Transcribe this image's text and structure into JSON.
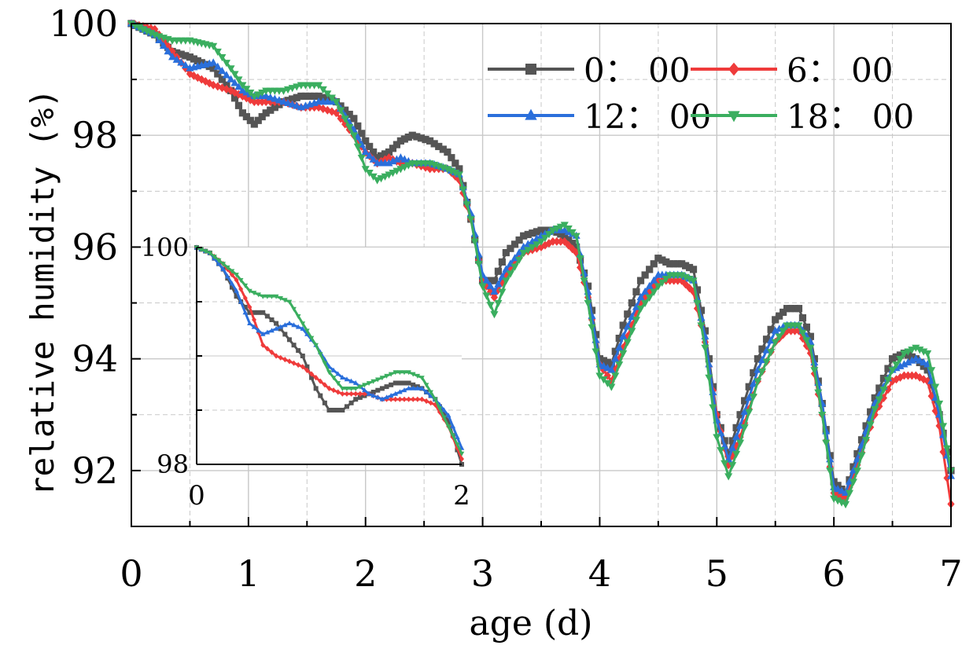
{
  "chart_data": {
    "type": "line",
    "title": "",
    "xlabel": "age (d)",
    "ylabel": "relative humidity (%)",
    "xlim": [
      0,
      7
    ],
    "ylim": [
      91,
      100
    ],
    "xticks": [
      "0",
      "1",
      "2",
      "3",
      "4",
      "5",
      "6",
      "7"
    ],
    "yticks": [
      "92",
      "94",
      "96",
      "98",
      "100"
    ],
    "grid": true,
    "legend_position": "top-right",
    "series": [
      {
        "name": "0: 00",
        "label": "0： 00",
        "color": "#555555",
        "marker": "square",
        "x": [
          0,
          0.2,
          0.35,
          0.5,
          0.7,
          0.85,
          0.95,
          1.05,
          1.15,
          1.3,
          1.45,
          1.6,
          1.75,
          1.9,
          2.0,
          2.1,
          2.2,
          2.3,
          2.4,
          2.55,
          2.7,
          2.8,
          2.9,
          3.0,
          3.1,
          3.2,
          3.35,
          3.5,
          3.6,
          3.7,
          3.8,
          3.9,
          4.0,
          4.1,
          4.2,
          4.35,
          4.5,
          4.6,
          4.7,
          4.8,
          4.9,
          5.0,
          5.1,
          5.2,
          5.35,
          5.5,
          5.6,
          5.7,
          5.8,
          5.9,
          6.0,
          6.1,
          6.2,
          6.35,
          6.5,
          6.6,
          6.7,
          6.8,
          6.9,
          7.0
        ],
        "y": [
          100,
          99.8,
          99.5,
          99.4,
          99.2,
          98.8,
          98.4,
          98.2,
          98.4,
          98.6,
          98.7,
          98.7,
          98.6,
          98.3,
          97.9,
          97.6,
          97.7,
          97.9,
          98.0,
          97.9,
          97.7,
          97.4,
          96.5,
          95.4,
          95.4,
          95.9,
          96.2,
          96.3,
          96.3,
          96.2,
          96.0,
          95.3,
          94.0,
          93.9,
          94.6,
          95.4,
          95.8,
          95.7,
          95.7,
          95.6,
          94.5,
          93.0,
          92.3,
          93.0,
          94.0,
          94.7,
          94.9,
          94.9,
          94.4,
          93.2,
          91.8,
          91.6,
          92.3,
          93.3,
          94.0,
          94.1,
          94.0,
          93.8,
          93.0,
          92.0
        ]
      },
      {
        "name": "6: 00",
        "label": "6： 00",
        "color": "#ef3b3b",
        "marker": "diamond",
        "x": [
          0,
          0.2,
          0.35,
          0.5,
          0.7,
          0.85,
          0.95,
          1.05,
          1.15,
          1.3,
          1.45,
          1.6,
          1.75,
          1.9,
          2.0,
          2.1,
          2.2,
          2.3,
          2.4,
          2.55,
          2.7,
          2.8,
          2.9,
          3.0,
          3.1,
          3.2,
          3.35,
          3.5,
          3.6,
          3.7,
          3.8,
          3.9,
          4.0,
          4.1,
          4.2,
          4.35,
          4.5,
          4.6,
          4.7,
          4.8,
          4.9,
          5.0,
          5.1,
          5.2,
          5.35,
          5.5,
          5.6,
          5.7,
          5.8,
          5.9,
          6.0,
          6.1,
          6.2,
          6.35,
          6.5,
          6.6,
          6.7,
          6.8,
          6.9,
          7.0
        ],
        "y": [
          100,
          99.9,
          99.5,
          99.1,
          98.9,
          98.8,
          98.7,
          98.6,
          98.6,
          98.6,
          98.5,
          98.5,
          98.4,
          98.0,
          97.7,
          97.5,
          97.6,
          97.5,
          97.5,
          97.4,
          97.4,
          97.2,
          96.5,
          95.4,
          95.1,
          95.5,
          95.9,
          96.0,
          96.1,
          96.1,
          95.9,
          95.1,
          93.9,
          93.6,
          94.2,
          95.0,
          95.4,
          95.4,
          95.4,
          95.2,
          94.3,
          93.0,
          92.1,
          92.6,
          93.6,
          94.3,
          94.5,
          94.5,
          94.1,
          93.0,
          91.6,
          91.5,
          92.1,
          93.0,
          93.6,
          93.7,
          93.7,
          93.6,
          92.8,
          91.4
        ]
      },
      {
        "name": "12: 00",
        "label": "12： 00",
        "color": "#2a6fdb",
        "marker": "triangle-up",
        "x": [
          0,
          0.2,
          0.35,
          0.5,
          0.7,
          0.85,
          0.95,
          1.05,
          1.15,
          1.3,
          1.45,
          1.6,
          1.75,
          1.9,
          2.0,
          2.1,
          2.2,
          2.3,
          2.4,
          2.55,
          2.7,
          2.8,
          2.9,
          3.0,
          3.1,
          3.2,
          3.35,
          3.5,
          3.6,
          3.7,
          3.8,
          3.9,
          4.0,
          4.1,
          4.2,
          4.35,
          4.5,
          4.6,
          4.7,
          4.8,
          4.9,
          5.0,
          5.1,
          5.2,
          5.35,
          5.5,
          5.6,
          5.7,
          5.8,
          5.9,
          6.0,
          6.1,
          6.2,
          6.35,
          6.5,
          6.6,
          6.7,
          6.8,
          6.9,
          7.0
        ],
        "y": [
          100,
          99.8,
          99.4,
          99.2,
          99.3,
          99.0,
          98.8,
          98.7,
          98.7,
          98.6,
          98.5,
          98.6,
          98.6,
          98.1,
          97.7,
          97.5,
          97.5,
          97.6,
          97.5,
          97.5,
          97.4,
          97.3,
          96.6,
          95.5,
          95.2,
          95.6,
          96.0,
          96.2,
          96.3,
          96.3,
          96.2,
          95.2,
          93.9,
          93.8,
          94.4,
          95.1,
          95.5,
          95.5,
          95.5,
          95.4,
          94.4,
          92.9,
          92.2,
          92.8,
          93.8,
          94.5,
          94.6,
          94.6,
          94.3,
          93.2,
          91.7,
          91.6,
          92.2,
          93.2,
          93.8,
          93.9,
          94.0,
          93.9,
          93.0,
          91.9
        ]
      },
      {
        "name": "18: 00",
        "label": "18： 00",
        "color": "#3aae5f",
        "marker": "triangle-down",
        "x": [
          0,
          0.2,
          0.35,
          0.5,
          0.7,
          0.85,
          0.95,
          1.05,
          1.15,
          1.3,
          1.45,
          1.6,
          1.75,
          1.9,
          2.0,
          2.1,
          2.2,
          2.3,
          2.4,
          2.55,
          2.7,
          2.8,
          2.9,
          3.0,
          3.1,
          3.2,
          3.35,
          3.5,
          3.6,
          3.7,
          3.8,
          3.9,
          4.0,
          4.1,
          4.2,
          4.35,
          4.5,
          4.6,
          4.7,
          4.8,
          4.9,
          5.0,
          5.1,
          5.2,
          5.35,
          5.5,
          5.6,
          5.7,
          5.8,
          5.9,
          6.0,
          6.1,
          6.2,
          6.35,
          6.5,
          6.6,
          6.7,
          6.8,
          6.9,
          7.0
        ],
        "y": [
          100,
          99.8,
          99.7,
          99.7,
          99.6,
          99.2,
          98.9,
          98.7,
          98.8,
          98.8,
          98.9,
          98.9,
          98.6,
          98.0,
          97.4,
          97.2,
          97.3,
          97.4,
          97.5,
          97.5,
          97.4,
          97.3,
          96.5,
          95.3,
          94.8,
          95.4,
          95.9,
          96.1,
          96.3,
          96.4,
          96.2,
          95.0,
          93.7,
          93.5,
          94.1,
          94.9,
          95.3,
          95.5,
          95.5,
          95.4,
          94.2,
          92.6,
          91.9,
          92.5,
          93.6,
          94.3,
          94.6,
          94.6,
          94.2,
          93.0,
          91.5,
          91.4,
          92.0,
          93.1,
          93.8,
          94.1,
          94.2,
          94.1,
          93.2,
          92.0
        ]
      }
    ],
    "inset": {
      "xlim": [
        0,
        2
      ],
      "ylim": [
        98,
        100
      ],
      "xticks": [
        "0",
        "2"
      ],
      "yticks": [
        "98",
        "100"
      ],
      "series": [
        {
          "name": "0: 00",
          "x": [
            0,
            0.1,
            0.2,
            0.3,
            0.4,
            0.5,
            0.6,
            0.7,
            0.8,
            0.9,
            1.0,
            1.1,
            1.2,
            1.3,
            1.4,
            1.5,
            1.6,
            1.7,
            1.8,
            1.9,
            2.0
          ],
          "y": [
            100,
            99.95,
            99.8,
            99.55,
            99.4,
            99.4,
            99.3,
            99.15,
            99.0,
            98.7,
            98.5,
            98.5,
            98.6,
            98.65,
            98.7,
            98.75,
            98.75,
            98.7,
            98.6,
            98.4,
            98.0
          ]
        },
        {
          "name": "6: 00",
          "x": [
            0,
            0.1,
            0.2,
            0.3,
            0.4,
            0.5,
            0.6,
            0.7,
            0.8,
            0.9,
            1.0,
            1.1,
            1.2,
            1.3,
            1.4,
            1.5,
            1.6,
            1.7,
            1.8,
            1.9,
            2.0
          ],
          "y": [
            100,
            99.95,
            99.85,
            99.7,
            99.45,
            99.1,
            99.0,
            98.95,
            98.9,
            98.8,
            98.7,
            98.65,
            98.65,
            98.65,
            98.6,
            98.6,
            98.6,
            98.6,
            98.55,
            98.35,
            98.05
          ]
        },
        {
          "name": "12: 00",
          "x": [
            0,
            0.1,
            0.2,
            0.3,
            0.4,
            0.5,
            0.6,
            0.7,
            0.8,
            0.9,
            1.0,
            1.1,
            1.2,
            1.3,
            1.4,
            1.5,
            1.6,
            1.7,
            1.8,
            1.9,
            2.0
          ],
          "y": [
            100,
            99.95,
            99.8,
            99.6,
            99.3,
            99.2,
            99.25,
            99.3,
            99.25,
            99.1,
            98.9,
            98.8,
            98.75,
            98.65,
            98.6,
            98.65,
            98.7,
            98.7,
            98.6,
            98.45,
            98.15
          ]
        },
        {
          "name": "18: 00",
          "x": [
            0,
            0.1,
            0.2,
            0.3,
            0.4,
            0.5,
            0.6,
            0.7,
            0.8,
            0.9,
            1.0,
            1.1,
            1.2,
            1.3,
            1.4,
            1.5,
            1.6,
            1.7,
            1.8,
            1.9,
            2.0
          ],
          "y": [
            100,
            99.95,
            99.85,
            99.75,
            99.6,
            99.55,
            99.55,
            99.5,
            99.3,
            99.1,
            98.85,
            98.7,
            98.7,
            98.75,
            98.8,
            98.85,
            98.85,
            98.8,
            98.6,
            98.35,
            98.1
          ]
        }
      ]
    }
  }
}
